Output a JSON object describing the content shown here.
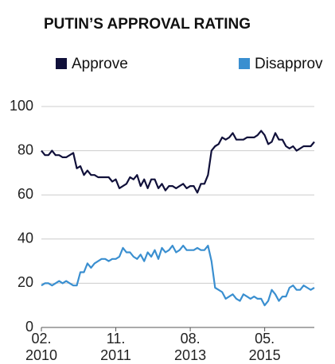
{
  "chart_data": {
    "type": "line",
    "title": "PUTIN’S APPROVAL RATING",
    "x": [
      "2010-02",
      "2010-03",
      "2010-04",
      "2010-05",
      "2010-06",
      "2010-07",
      "2010-08",
      "2010-09",
      "2010-10",
      "2010-11",
      "2010-12",
      "2011-01",
      "2011-02",
      "2011-03",
      "2011-04",
      "2011-05",
      "2011-06",
      "2011-07",
      "2011-08",
      "2011-09",
      "2011-10",
      "2011-11",
      "2011-12",
      "2012-01",
      "2012-02",
      "2012-03",
      "2012-04",
      "2012-05",
      "2012-06",
      "2012-07",
      "2012-08",
      "2012-09",
      "2012-10",
      "2012-11",
      "2012-12",
      "2013-01",
      "2013-02",
      "2013-03",
      "2013-04",
      "2013-05",
      "2013-06",
      "2013-07",
      "2013-08",
      "2013-09",
      "2013-10",
      "2013-11",
      "2013-12",
      "2014-01",
      "2014-02",
      "2014-03",
      "2014-04",
      "2014-05",
      "2014-06",
      "2014-07",
      "2014-08",
      "2014-09",
      "2014-10",
      "2014-11",
      "2014-12",
      "2015-01",
      "2015-02",
      "2015-03",
      "2015-04",
      "2015-05",
      "2015-06",
      "2015-07",
      "2015-08",
      "2015-09",
      "2015-10",
      "2015-11",
      "2015-12",
      "2016-01",
      "2016-02",
      "2016-03",
      "2016-04",
      "2016-05",
      "2016-06",
      "2016-07"
    ],
    "series": [
      {
        "name": "Approve",
        "color": "#10103a",
        "values": [
          80,
          78,
          78,
          80,
          78,
          78,
          77,
          77,
          78,
          79,
          72,
          73,
          69,
          71,
          69,
          69,
          68,
          68,
          68,
          68,
          66,
          67,
          63,
          64,
          65,
          68,
          67,
          69,
          64,
          67,
          63,
          67,
          67,
          63,
          65,
          62,
          64,
          64,
          63,
          64,
          65,
          63,
          64,
          64,
          61,
          65,
          65,
          69,
          80,
          82,
          83,
          86,
          85,
          86,
          88,
          85,
          85,
          85,
          86,
          86,
          86,
          87,
          89,
          87,
          83,
          84,
          88,
          85,
          85,
          82,
          81,
          82,
          80,
          81,
          82,
          82,
          82,
          84
        ]
      },
      {
        "name": "Disapprov",
        "color": "#3a8fd0",
        "values": [
          19,
          20,
          20,
          19,
          20,
          21,
          20,
          21,
          20,
          19,
          19,
          25,
          25,
          29,
          27,
          29,
          30,
          31,
          31,
          30,
          31,
          31,
          32,
          36,
          34,
          34,
          32,
          31,
          33,
          30,
          34,
          32,
          35,
          31,
          36,
          34,
          35,
          37,
          34,
          35,
          37,
          35,
          35,
          35,
          36,
          35,
          35,
          37,
          30,
          18,
          17,
          16,
          13,
          14,
          15,
          13,
          12,
          15,
          14,
          13,
          14,
          13,
          13,
          10,
          12,
          17,
          15,
          12,
          14,
          14,
          18,
          19,
          17,
          17,
          19,
          18,
          17,
          18
        ]
      }
    ],
    "xlim": [
      "2010-02",
      "2016-07"
    ],
    "xticks": [
      {
        "value": "2010-02",
        "label": "02.\n2010"
      },
      {
        "value": "2011-11",
        "label": "11.\n2011"
      },
      {
        "value": "2013-08",
        "label": "08.\n2013"
      },
      {
        "value": "2015-05",
        "label": "05.\n2015"
      }
    ],
    "ylim": [
      0,
      100
    ],
    "yticks": [
      0,
      20,
      40,
      60,
      80,
      100
    ],
    "grid": true
  }
}
